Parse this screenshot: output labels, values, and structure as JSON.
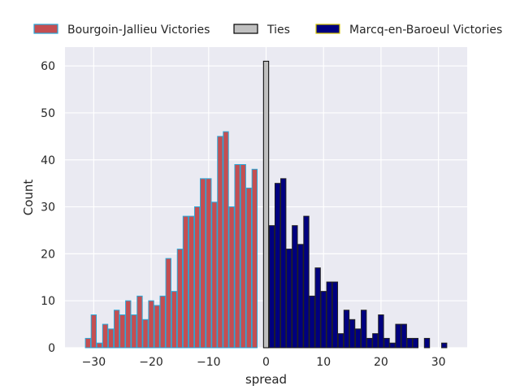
{
  "chart_data": {
    "type": "bar",
    "title": "",
    "xlabel": "spread",
    "ylabel": "Count",
    "xlim": [
      -35,
      35
    ],
    "ylim": [
      0,
      64
    ],
    "xticks": [
      -30,
      -20,
      -10,
      0,
      10,
      20,
      30
    ],
    "xtick_labels": [
      "−30",
      "−20",
      "−10",
      "0",
      "10",
      "20",
      "30"
    ],
    "yticks": [
      0,
      10,
      20,
      30,
      40,
      50,
      60
    ],
    "ytick_labels": [
      "0",
      "10",
      "20",
      "30",
      "40",
      "50",
      "60"
    ],
    "grid": true,
    "legend_position": "top, above plot",
    "series": [
      {
        "name": "Bourgoin-Jallieu Victories",
        "color": "#c44e52",
        "edge_color": "#2aa8d8",
        "x": [
          -31,
          -30,
          -29,
          -28,
          -27,
          -26,
          -25,
          -24,
          -23,
          -22,
          -21,
          -20,
          -19,
          -18,
          -17,
          -16,
          -15,
          -14,
          -13,
          -12,
          -11,
          -10,
          -9,
          -8,
          -7,
          -6,
          -5,
          -4,
          -3,
          -2,
          -1
        ],
        "values": [
          2,
          7,
          1,
          5,
          4,
          8,
          7,
          10,
          7,
          11,
          6,
          10,
          9,
          11,
          19,
          12,
          21,
          28,
          28,
          30,
          36,
          36,
          31,
          45,
          46,
          30,
          39,
          39,
          34,
          38,
          0
        ]
      },
      {
        "name": "Ties",
        "color": "#c0c0c0",
        "edge_color": "#000000",
        "x": [
          0
        ],
        "values": [
          61
        ]
      },
      {
        "name": "Marcq-en-Baroeul Victories",
        "color": "#00007f",
        "edge_color": "#222222",
        "x": [
          1,
          2,
          3,
          4,
          5,
          6,
          7,
          8,
          9,
          10,
          11,
          12,
          13,
          14,
          15,
          16,
          17,
          18,
          19,
          20,
          21,
          22,
          23,
          24,
          25,
          26,
          27,
          28,
          29,
          30,
          31
        ],
        "values": [
          26,
          35,
          36,
          21,
          26,
          22,
          28,
          11,
          17,
          12,
          14,
          14,
          3,
          8,
          6,
          4,
          8,
          2,
          3,
          7,
          2,
          1,
          5,
          5,
          2,
          2,
          0,
          2,
          0,
          0,
          1
        ]
      }
    ]
  },
  "colors": {
    "plot_background": "#eaeaf2",
    "grid": "#ffffff",
    "text": "#262626"
  }
}
